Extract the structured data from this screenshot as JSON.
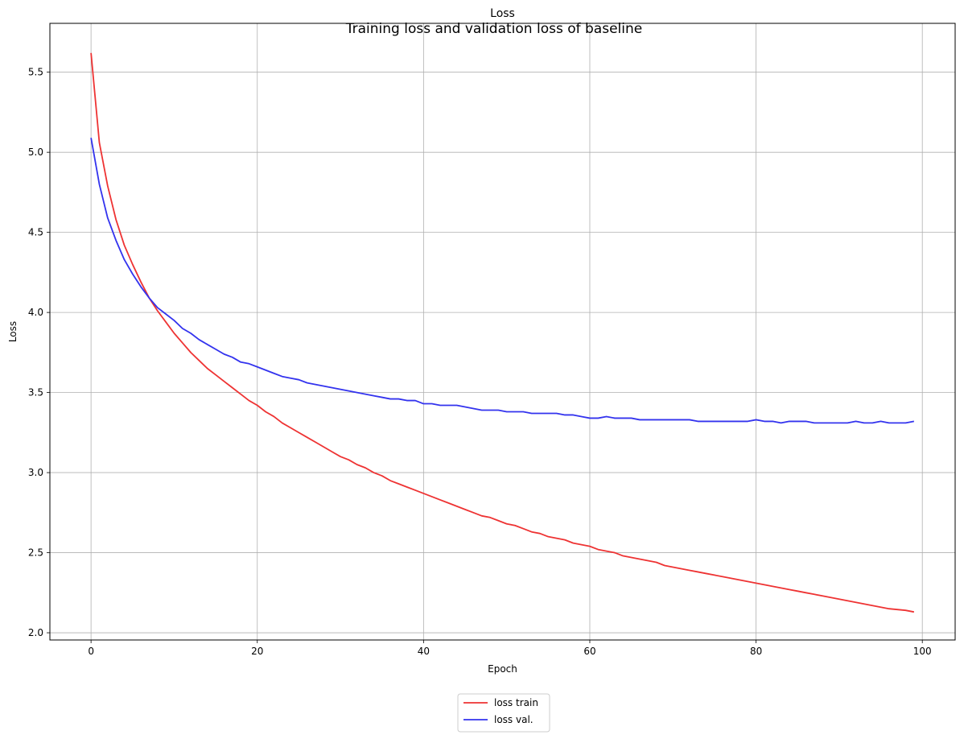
{
  "chart_data": {
    "type": "line",
    "suptitle": "Training loss and validation loss of baseline",
    "title": "Loss",
    "xlabel": "Epoch",
    "ylabel": "Loss",
    "xlim": [
      -4.95,
      103.95
    ],
    "ylim": [
      1.955,
      5.805
    ],
    "xticks": [
      0,
      20,
      40,
      60,
      80,
      100
    ],
    "yticks": [
      2.0,
      2.5,
      3.0,
      3.5,
      4.0,
      4.5,
      5.0,
      5.5
    ],
    "grid": true,
    "legend_position": "bottom-center",
    "x": [
      0,
      1,
      2,
      3,
      4,
      5,
      6,
      7,
      8,
      9,
      10,
      11,
      12,
      13,
      14,
      15,
      16,
      17,
      18,
      19,
      20,
      21,
      22,
      23,
      24,
      25,
      26,
      27,
      28,
      29,
      30,
      31,
      32,
      33,
      34,
      35,
      36,
      37,
      38,
      39,
      40,
      41,
      42,
      43,
      44,
      45,
      46,
      47,
      48,
      49,
      50,
      51,
      52,
      53,
      54,
      55,
      56,
      57,
      58,
      59,
      60,
      61,
      62,
      63,
      64,
      65,
      66,
      67,
      68,
      69,
      70,
      71,
      72,
      73,
      74,
      75,
      76,
      77,
      78,
      79,
      80,
      81,
      82,
      83,
      84,
      85,
      86,
      87,
      88,
      89,
      90,
      91,
      92,
      93,
      94,
      95,
      96,
      97,
      98,
      99
    ],
    "series": [
      {
        "name": "loss train",
        "color": "#ee3333",
        "values": [
          5.62,
          5.06,
          4.79,
          4.58,
          4.42,
          4.3,
          4.19,
          4.09,
          4.01,
          3.94,
          3.87,
          3.81,
          3.75,
          3.7,
          3.65,
          3.61,
          3.57,
          3.53,
          3.49,
          3.45,
          3.42,
          3.38,
          3.35,
          3.31,
          3.28,
          3.25,
          3.22,
          3.19,
          3.16,
          3.13,
          3.1,
          3.08,
          3.05,
          3.03,
          3.0,
          2.98,
          2.95,
          2.93,
          2.91,
          2.89,
          2.87,
          2.85,
          2.83,
          2.81,
          2.79,
          2.77,
          2.75,
          2.73,
          2.72,
          2.7,
          2.68,
          2.67,
          2.65,
          2.63,
          2.62,
          2.6,
          2.59,
          2.58,
          2.56,
          2.55,
          2.54,
          2.52,
          2.51,
          2.5,
          2.48,
          2.47,
          2.46,
          2.45,
          2.44,
          2.42,
          2.41,
          2.4,
          2.39,
          2.38,
          2.37,
          2.36,
          2.35,
          2.34,
          2.33,
          2.32,
          2.31,
          2.3,
          2.29,
          2.28,
          2.27,
          2.26,
          2.25,
          2.24,
          2.23,
          2.22,
          2.21,
          2.2,
          2.19,
          2.18,
          2.17,
          2.16,
          2.15,
          2.145,
          2.14,
          2.13
        ]
      },
      {
        "name": "loss val.",
        "color": "#3333ee",
        "values": [
          5.09,
          4.8,
          4.59,
          4.45,
          4.33,
          4.24,
          4.16,
          4.09,
          4.03,
          3.99,
          3.95,
          3.9,
          3.87,
          3.83,
          3.8,
          3.77,
          3.74,
          3.72,
          3.69,
          3.68,
          3.66,
          3.64,
          3.62,
          3.6,
          3.59,
          3.58,
          3.56,
          3.55,
          3.54,
          3.53,
          3.52,
          3.51,
          3.5,
          3.49,
          3.48,
          3.47,
          3.46,
          3.46,
          3.45,
          3.45,
          3.43,
          3.43,
          3.42,
          3.42,
          3.42,
          3.41,
          3.4,
          3.39,
          3.39,
          3.39,
          3.38,
          3.38,
          3.38,
          3.37,
          3.37,
          3.37,
          3.37,
          3.36,
          3.36,
          3.35,
          3.34,
          3.34,
          3.35,
          3.34,
          3.34,
          3.34,
          3.33,
          3.33,
          3.33,
          3.33,
          3.33,
          3.33,
          3.33,
          3.32,
          3.32,
          3.32,
          3.32,
          3.32,
          3.32,
          3.32,
          3.33,
          3.32,
          3.32,
          3.31,
          3.32,
          3.32,
          3.32,
          3.31,
          3.31,
          3.31,
          3.31,
          3.31,
          3.32,
          3.31,
          3.31,
          3.32,
          3.31,
          3.31,
          3.31,
          3.32
        ]
      }
    ]
  }
}
